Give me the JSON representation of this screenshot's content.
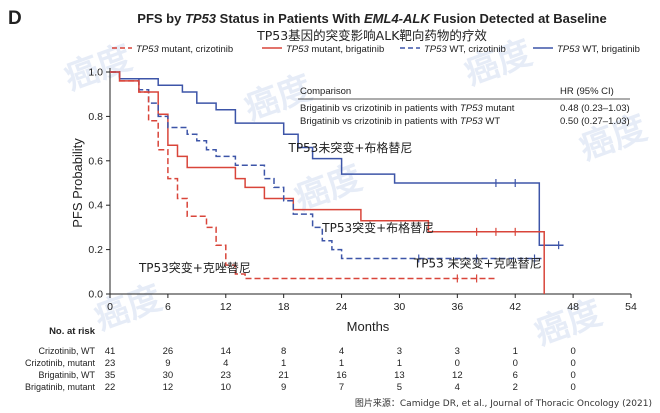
{
  "chart_data": {
    "type": "line",
    "panel_letter": "D",
    "title": {
      "pre": "PFS by ",
      "tp53": "TP53",
      "mid": " Status in Patients With ",
      "fusion": "EML4-ALK",
      "post": " Fusion Detected at Baseline"
    },
    "subtitle_cn": "TP53基因的突变影响ALK靶向药物的疗效",
    "xlabel": "Months",
    "ylabel": "PFS Probability",
    "xlim": [
      0,
      54
    ],
    "ylim": [
      0,
      1.0
    ],
    "xticks": [
      "0",
      "6",
      "12",
      "18",
      "24",
      "30",
      "36",
      "42",
      "48",
      "54"
    ],
    "yticks": [
      "0.0",
      "0.2",
      "0.4",
      "0.6",
      "0.8",
      "1.0"
    ],
    "legend": [
      {
        "name_italic": "TP53",
        "name_rest": " mutant, crizotinib",
        "color": "#d9453a",
        "dash": true
      },
      {
        "name_italic": "TP53",
        "name_rest": " mutant, brigatinib",
        "color": "#d9453a",
        "dash": false
      },
      {
        "name_italic": "TP53",
        "name_rest": " WT, crizotinib",
        "color": "#3d55a8",
        "dash": true
      },
      {
        "name_italic": "TP53",
        "name_rest": " WT, brigatinib",
        "color": "#3d55a8",
        "dash": false
      }
    ],
    "series": [
      {
        "name": "TP53 WT, brigatinib",
        "color": "#3d55a8",
        "dash": false,
        "points": [
          [
            0,
            1.0
          ],
          [
            1,
            0.97
          ],
          [
            3,
            0.97
          ],
          [
            5,
            0.94
          ],
          [
            6,
            0.94
          ],
          [
            7.5,
            0.91
          ],
          [
            9,
            0.86
          ],
          [
            10,
            0.86
          ],
          [
            11,
            0.83
          ],
          [
            13,
            0.77
          ],
          [
            16,
            0.77
          ],
          [
            18,
            0.72
          ],
          [
            19.5,
            0.66
          ],
          [
            20,
            0.66
          ],
          [
            21,
            0.61
          ],
          [
            23,
            0.61
          ],
          [
            24,
            0.54
          ],
          [
            28,
            0.54
          ],
          [
            29.5,
            0.5
          ],
          [
            44,
            0.5
          ],
          [
            44.5,
            0.22
          ],
          [
            47,
            0.22
          ]
        ],
        "censor": [
          [
            40,
            0.5
          ],
          [
            42,
            0.5
          ],
          [
            46.5,
            0.22
          ]
        ]
      },
      {
        "name": "TP53 mutant, brigatinib",
        "color": "#d9453a",
        "dash": false,
        "points": [
          [
            0,
            1.0
          ],
          [
            1,
            0.96
          ],
          [
            2,
            0.96
          ],
          [
            3,
            0.91
          ],
          [
            4,
            0.91
          ],
          [
            5,
            0.81
          ],
          [
            6,
            0.67
          ],
          [
            7,
            0.62
          ],
          [
            8,
            0.57
          ],
          [
            12,
            0.57
          ],
          [
            13,
            0.52
          ],
          [
            14,
            0.48
          ],
          [
            16,
            0.43
          ],
          [
            18,
            0.43
          ],
          [
            19,
            0.38
          ],
          [
            24,
            0.38
          ],
          [
            26,
            0.33
          ],
          [
            32,
            0.33
          ],
          [
            33,
            0.28
          ],
          [
            44,
            0.28
          ],
          [
            45,
            0.0
          ]
        ],
        "censor": [
          [
            38,
            0.28
          ],
          [
            40,
            0.28
          ],
          [
            42,
            0.28
          ]
        ]
      },
      {
        "name": "TP53 WT, crizotinib",
        "color": "#3d55a8",
        "dash": true,
        "points": [
          [
            0,
            1.0
          ],
          [
            1,
            0.97
          ],
          [
            3,
            0.92
          ],
          [
            4,
            0.86
          ],
          [
            5,
            0.8
          ],
          [
            6,
            0.75
          ],
          [
            8,
            0.72
          ],
          [
            9,
            0.69
          ],
          [
            10,
            0.65
          ],
          [
            11,
            0.62
          ],
          [
            13,
            0.58
          ],
          [
            16,
            0.52
          ],
          [
            17,
            0.48
          ],
          [
            18,
            0.42
          ],
          [
            19,
            0.36
          ],
          [
            21,
            0.3
          ],
          [
            22,
            0.24
          ],
          [
            23,
            0.2
          ],
          [
            24,
            0.16
          ],
          [
            45,
            0.16
          ]
        ],
        "censor": [
          [
            32,
            0.16
          ],
          [
            38,
            0.16
          ],
          [
            44,
            0.16
          ]
        ]
      },
      {
        "name": "TP53 mutant, crizotinib",
        "color": "#d9453a",
        "dash": true,
        "points": [
          [
            0,
            1.0
          ],
          [
            1,
            0.96
          ],
          [
            3,
            0.91
          ],
          [
            4,
            0.78
          ],
          [
            5,
            0.65
          ],
          [
            6,
            0.52
          ],
          [
            7,
            0.43
          ],
          [
            8,
            0.35
          ],
          [
            10,
            0.3
          ],
          [
            11,
            0.22
          ],
          [
            12,
            0.13
          ],
          [
            13,
            0.09
          ],
          [
            14,
            0.07
          ],
          [
            40,
            0.07
          ]
        ],
        "censor": [
          [
            36,
            0.07
          ],
          [
            38,
            0.07
          ]
        ]
      }
    ],
    "hr_table": {
      "header_label": "Comparison",
      "header_value": "HR (95% CI)",
      "rows": [
        {
          "pre": "Brigatinib vs crizotinib in patients with ",
          "italic": "TP53",
          "post": " mutant",
          "value": "0.48 (0.23–1.03)"
        },
        {
          "pre": "Brigatinib vs crizotinib in patients with ",
          "italic": "TP53",
          "post": " WT",
          "value": "0.50 (0.27–1.03)"
        }
      ]
    },
    "annotations": [
      {
        "text": "TP53未突变+布格替尼",
        "x": 18.5,
        "y": 0.64
      },
      {
        "text": "TP53突变+布格替尼",
        "x": 22.0,
        "y": 0.28
      },
      {
        "text": "TP53 未突变+克唑替尼",
        "x": 31.5,
        "y": 0.12
      },
      {
        "text": "TP53突变+克唑替尼",
        "x": 3.0,
        "y": 0.1
      }
    ],
    "risk_table": {
      "title": "No. at risk",
      "times": [
        0,
        6,
        12,
        18,
        24,
        30,
        36,
        42,
        48
      ],
      "rows": [
        {
          "label": "Crizotinib, WT",
          "values": [
            "41",
            "26",
            "14",
            "8",
            "4",
            "3",
            "3",
            "1",
            "0"
          ]
        },
        {
          "label": "Crizotinib, mutant",
          "values": [
            "23",
            "9",
            "4",
            "1",
            "1",
            "1",
            "0",
            "0",
            "0"
          ]
        },
        {
          "label": "Brigatinib, WT",
          "values": [
            "35",
            "30",
            "23",
            "21",
            "16",
            "13",
            "12",
            "6",
            "0"
          ]
        },
        {
          "label": "Brigatinib, mutant",
          "values": [
            "22",
            "12",
            "10",
            "9",
            "7",
            "5",
            "4",
            "2",
            "0"
          ]
        }
      ]
    },
    "source": "图片来源：Camidge DR, et al., Journal of Thoracic Oncology (2021)",
    "watermark": "癌度"
  }
}
